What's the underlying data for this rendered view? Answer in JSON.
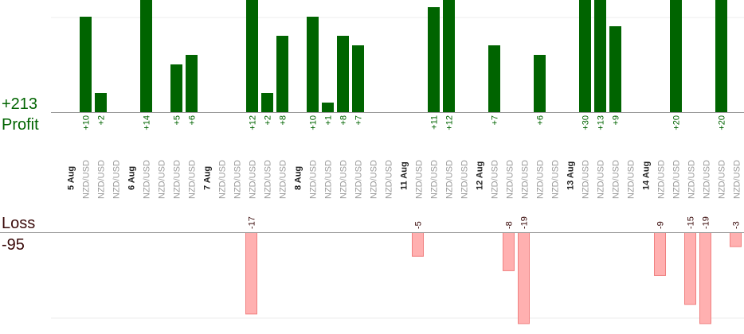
{
  "chart_data": {
    "type": "bar",
    "profit": {
      "label": "Profit",
      "total": "+213",
      "color": "#006400",
      "bars": [
        {
          "value": 10,
          "label": "+10"
        },
        {
          "value": 2,
          "label": "+2"
        },
        {
          "value": 14,
          "label": "+14"
        },
        {
          "value": 5,
          "label": "+5"
        },
        {
          "value": 6,
          "label": "+6"
        },
        {
          "value": 12,
          "label": "+12"
        },
        {
          "value": 2,
          "label": "+2"
        },
        {
          "value": 8,
          "label": "+8"
        },
        {
          "value": 10,
          "label": "+10"
        },
        {
          "value": 1,
          "label": "+1"
        },
        {
          "value": 8,
          "label": "+8"
        },
        {
          "value": 7,
          "label": "+7"
        },
        {
          "value": 11,
          "label": "+11"
        },
        {
          "value": 12,
          "label": "+12"
        },
        {
          "value": 7,
          "label": "+7"
        },
        {
          "value": 6,
          "label": "+6"
        },
        {
          "value": 30,
          "label": "+30"
        },
        {
          "value": 13,
          "label": "+13"
        },
        {
          "value": 9,
          "label": "+9"
        },
        {
          "value": 20,
          "label": "+20"
        },
        {
          "value": 20,
          "label": "+20"
        }
      ]
    },
    "loss": {
      "label": "Loss",
      "total": "-95",
      "color": "#ffb0b0",
      "bars": [
        {
          "value": -17,
          "label": "-17"
        },
        {
          "value": -5,
          "label": "-5"
        },
        {
          "value": -8,
          "label": "-8"
        },
        {
          "value": -19,
          "label": "-19"
        },
        {
          "value": -9,
          "label": "-9"
        },
        {
          "value": -15,
          "label": "-15"
        },
        {
          "value": -19,
          "label": "-19"
        },
        {
          "value": -3,
          "label": "-3"
        }
      ]
    },
    "dates": [
      "5 Aug",
      "6 Aug",
      "7 Aug",
      "8 Aug",
      "11 Aug",
      "12 Aug",
      "13 Aug",
      "14 Aug"
    ],
    "pair": "NZD/USD"
  }
}
